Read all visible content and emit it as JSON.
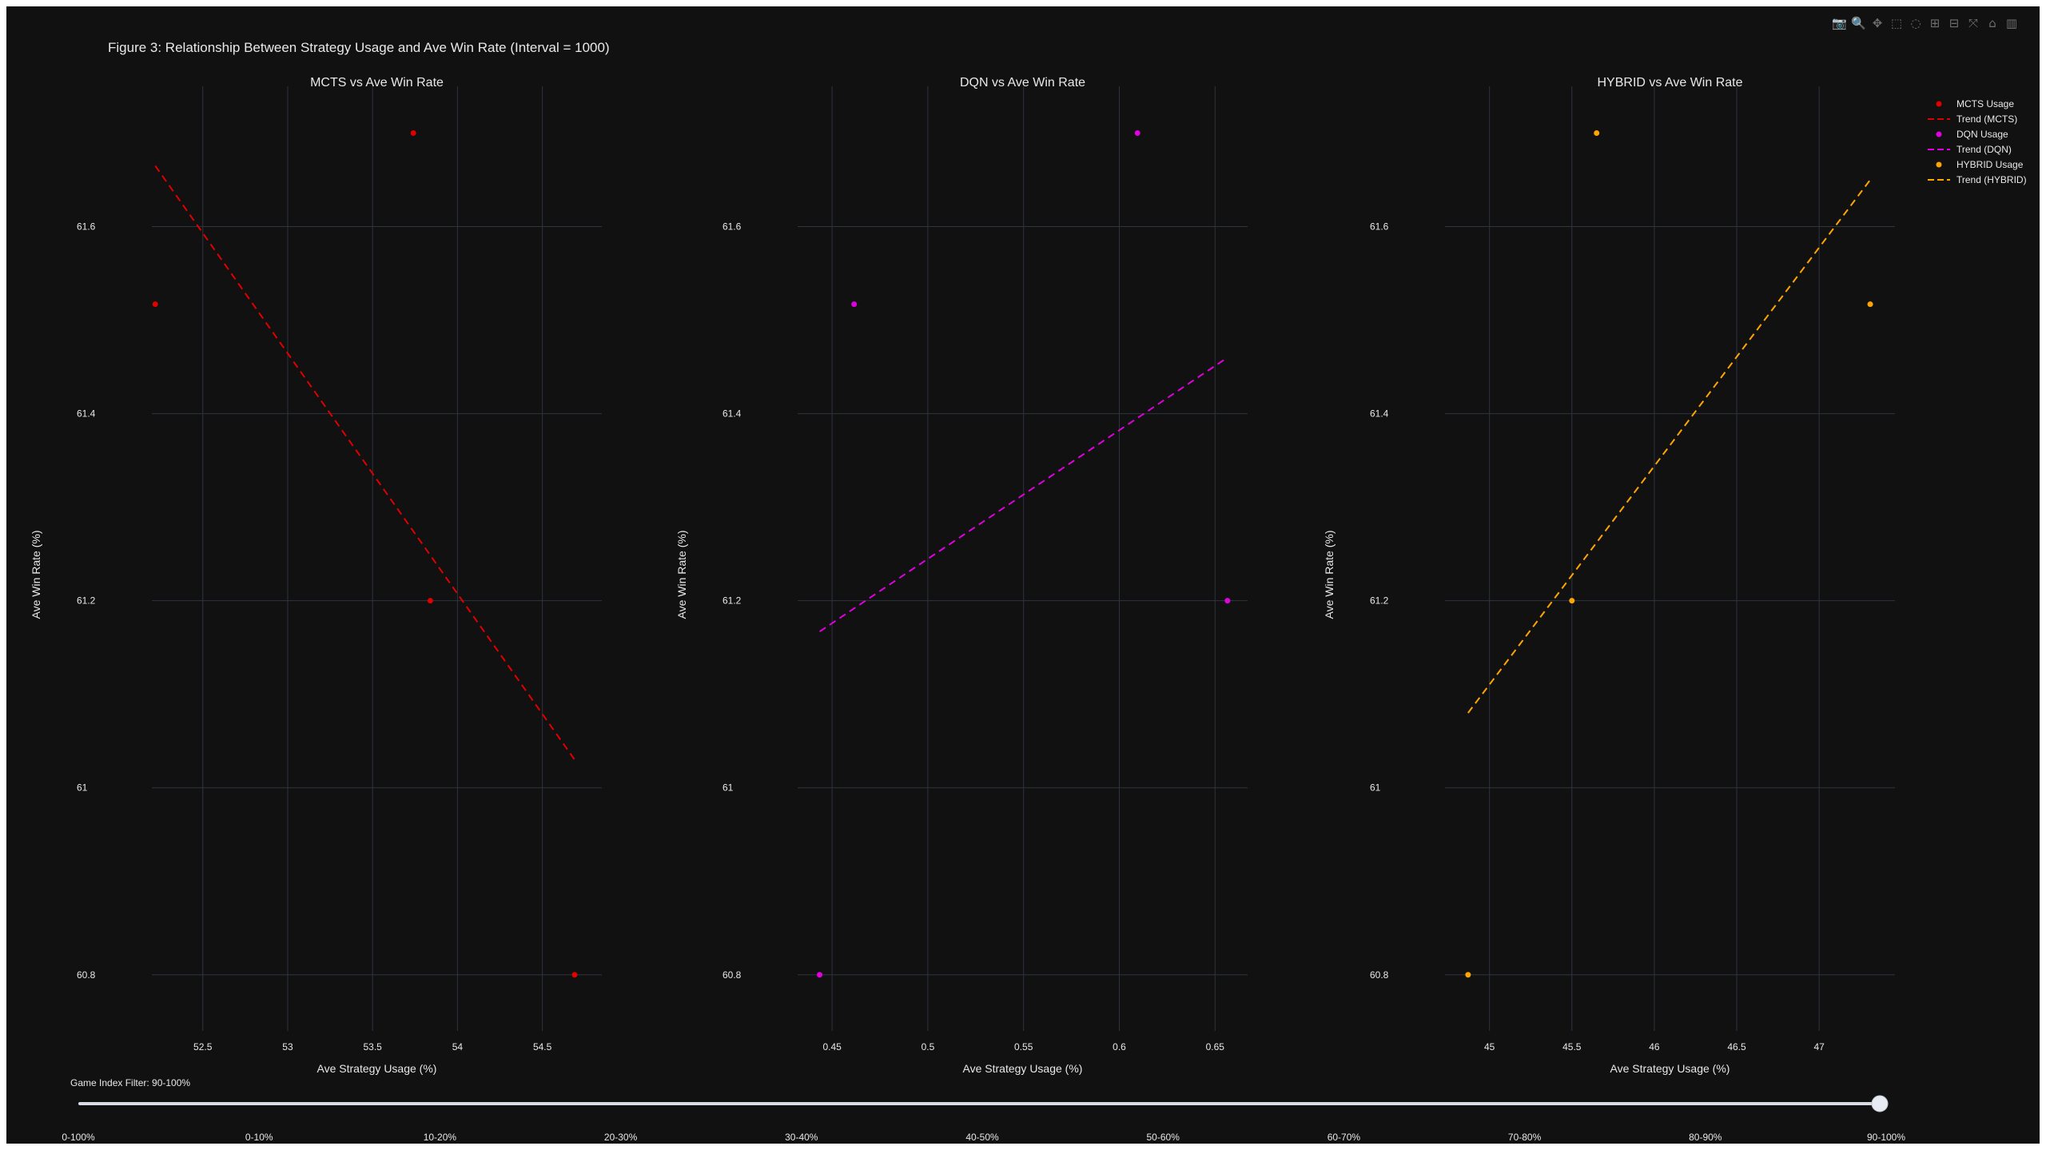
{
  "figure": {
    "title": "Figure 3: Relationship Between Strategy Usage and Ave Win Rate (Interval = 1000)",
    "background": "#111111",
    "grid_color": "#2e3440",
    "text_color": "#e8e8e8"
  },
  "modebar": [
    {
      "name": "camera-icon",
      "glyph": "📷"
    },
    {
      "name": "zoom-icon",
      "glyph": "🔍"
    },
    {
      "name": "pan-icon",
      "glyph": "✥"
    },
    {
      "name": "box-select-icon",
      "glyph": "⬚"
    },
    {
      "name": "lasso-select-icon",
      "glyph": "◌"
    },
    {
      "name": "zoom-in-icon",
      "glyph": "⊞"
    },
    {
      "name": "zoom-out-icon",
      "glyph": "⊟"
    },
    {
      "name": "autoscale-icon",
      "glyph": "⤧"
    },
    {
      "name": "reset-axes-icon",
      "glyph": "⌂"
    },
    {
      "name": "plotly-logo-icon",
      "glyph": "▥"
    }
  ],
  "chart_data": [
    {
      "type": "scatter",
      "title": "MCTS vs Ave Win Rate",
      "xlabel": "Ave Strategy Usage (%)",
      "ylabel": "Ave Win Rate (%)",
      "xlim": [
        52.2,
        54.85
      ],
      "ylim": [
        60.74,
        61.75
      ],
      "xticks": [
        52.5,
        53,
        53.5,
        54,
        54.5
      ],
      "xtick_labels": [
        "52.5",
        "53",
        "53.5",
        "54",
        "54.5"
      ],
      "yticks": [
        60.8,
        61,
        61.2,
        61.4,
        61.6
      ],
      "ytick_labels": [
        "60.8",
        "61",
        "61.2",
        "61.4",
        "61.6"
      ],
      "grid": true,
      "color": "#e00000",
      "points": [
        {
          "x": 52.22,
          "y": 61.517
        },
        {
          "x": 53.74,
          "y": 61.7
        },
        {
          "x": 53.84,
          "y": 61.2
        },
        {
          "x": 54.69,
          "y": 60.8
        }
      ],
      "trend": [
        {
          "x": 52.22,
          "y": 61.665
        },
        {
          "x": 54.69,
          "y": 61.03
        }
      ]
    },
    {
      "type": "scatter",
      "title": "DQN vs Ave Win Rate",
      "xlabel": "Ave Strategy Usage (%)",
      "ylabel": "Ave Win Rate (%)",
      "xlim": [
        0.432,
        0.667
      ],
      "ylim": [
        60.74,
        61.75
      ],
      "xticks": [
        0.45,
        0.5,
        0.55,
        0.6,
        0.65
      ],
      "xtick_labels": [
        "0.45",
        "0.5",
        "0.55",
        "0.6",
        "0.65"
      ],
      "yticks": [
        60.8,
        61,
        61.2,
        61.4,
        61.6
      ],
      "ytick_labels": [
        "60.8",
        "61",
        "61.2",
        "61.4",
        "61.6"
      ],
      "grid": true,
      "color": "#e000e0",
      "points": [
        {
          "x": 0.4435,
          "y": 60.8
        },
        {
          "x": 0.4615,
          "y": 61.517
        },
        {
          "x": 0.6095,
          "y": 61.7
        },
        {
          "x": 0.6565,
          "y": 61.2
        }
      ],
      "trend": [
        {
          "x": 0.4435,
          "y": 61.167
        },
        {
          "x": 0.6565,
          "y": 61.46
        }
      ]
    },
    {
      "type": "scatter",
      "title": "HYBRID vs Ave Win Rate",
      "xlabel": "Ave Strategy Usage (%)",
      "ylabel": "Ave Win Rate (%)",
      "xlim": [
        44.73,
        47.46
      ],
      "ylim": [
        60.74,
        61.75
      ],
      "xticks": [
        45,
        45.5,
        46,
        46.5,
        47
      ],
      "xtick_labels": [
        "45",
        "45.5",
        "46",
        "46.5",
        "47"
      ],
      "yticks": [
        60.8,
        61,
        61.2,
        61.4,
        61.6
      ],
      "ytick_labels": [
        "60.8",
        "61",
        "61.2",
        "61.4",
        "61.6"
      ],
      "grid": true,
      "color": "#ffa500",
      "points": [
        {
          "x": 44.87,
          "y": 60.8
        },
        {
          "x": 45.5,
          "y": 61.2
        },
        {
          "x": 45.65,
          "y": 61.7
        },
        {
          "x": 47.31,
          "y": 61.517
        }
      ],
      "trend": [
        {
          "x": 44.87,
          "y": 61.08
        },
        {
          "x": 47.31,
          "y": 61.65
        }
      ]
    }
  ],
  "legend": {
    "placement": "top-right",
    "items": [
      {
        "label": "MCTS Usage",
        "kind": "marker",
        "color": "#e00000"
      },
      {
        "label": "Trend (MCTS)",
        "kind": "dash",
        "color": "#e00000"
      },
      {
        "label": "DQN Usage",
        "kind": "marker",
        "color": "#e000e0"
      },
      {
        "label": "Trend (DQN)",
        "kind": "dash",
        "color": "#e000e0"
      },
      {
        "label": "HYBRID Usage",
        "kind": "marker",
        "color": "#ffa500"
      },
      {
        "label": "Trend (HYBRID)",
        "kind": "dash",
        "color": "#ffa500"
      }
    ]
  },
  "slider": {
    "label": "Game Index Filter: 90-100%",
    "steps": [
      "0-100%",
      "0-10%",
      "10-20%",
      "20-30%",
      "30-40%",
      "40-50%",
      "50-60%",
      "60-70%",
      "70-80%",
      "80-90%",
      "90-100%"
    ],
    "active_index": 10
  }
}
